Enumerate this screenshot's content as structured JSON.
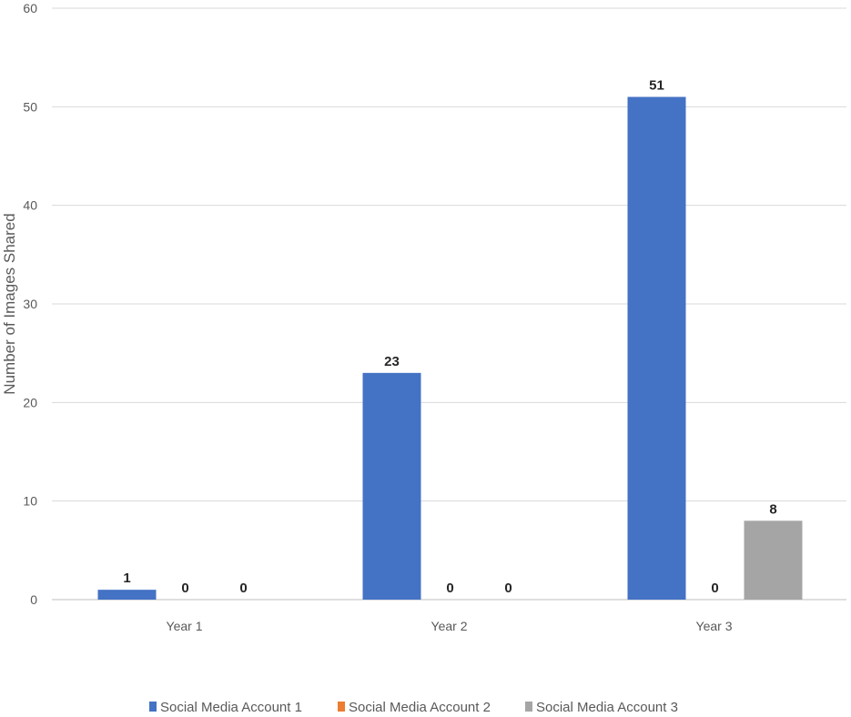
{
  "chart_data": {
    "type": "bar",
    "title": "",
    "xlabel": "",
    "ylabel": "Number of Images Shared",
    "ylim": [
      0,
      60
    ],
    "yticks": [
      0,
      10,
      20,
      30,
      40,
      50,
      60
    ],
    "grid": true,
    "legend_position": "bottom",
    "categories": [
      "Year 1",
      "Year 2",
      "Year 3"
    ],
    "series": [
      {
        "name": "Social Media Account 1",
        "color": "#4472C4",
        "values": [
          1,
          23,
          51
        ]
      },
      {
        "name": "Social Media Account 2",
        "color": "#ED7D31",
        "values": [
          0,
          0,
          0
        ]
      },
      {
        "name": "Social Media Account 3",
        "color": "#A5A5A5",
        "values": [
          0,
          0,
          8
        ]
      }
    ]
  }
}
